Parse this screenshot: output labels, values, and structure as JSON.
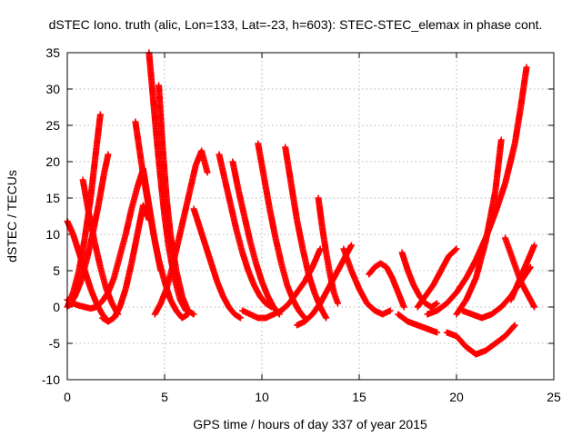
{
  "chart_data": {
    "type": "scatter",
    "title": "dSTEC Iono. truth (alic, Lon=133, Lat=-23, h=603): STEC-STEC_elemax in phase cont.",
    "xlabel": "GPS time / hours of day 337 of year 2015",
    "ylabel": "dSTEC  / TECUs",
    "xlim": [
      0,
      25
    ],
    "ylim": [
      -10,
      35
    ],
    "xticks": [
      "0",
      "5",
      "10",
      "15",
      "20",
      "25"
    ],
    "yticks": [
      "-10",
      "-5",
      "0",
      "5",
      "10",
      "15",
      "20",
      "25",
      "30",
      "35"
    ],
    "grid": true,
    "marker": "+",
    "color": "#ff0000",
    "series": [
      {
        "x": [
          0.0,
          0.3,
          0.6,
          0.9,
          1.2,
          1.5,
          1.8,
          2.1,
          2.4,
          2.7,
          3.0,
          3.3,
          3.6,
          3.9,
          4.2,
          4.5,
          4.8
        ],
        "values": [
          1.0,
          0.5,
          0.2,
          0.0,
          -0.2,
          0.0,
          0.8,
          2.0,
          4.0,
          7.0,
          10.0,
          13.5,
          16.5,
          19.0,
          14.0,
          9.0,
          5.0
        ]
      },
      {
        "x": [
          0.0,
          0.3,
          0.6,
          0.9,
          1.2,
          1.5,
          1.8,
          2.1
        ],
        "values": [
          11.8,
          10.0,
          7.5,
          5.0,
          2.5,
          0.5,
          -1.0,
          -2.0
        ]
      },
      {
        "x": [
          0.0,
          0.3,
          0.6,
          0.9,
          1.2,
          1.5,
          1.7
        ],
        "values": [
          0.0,
          2.0,
          5.0,
          9.5,
          15.0,
          22.0,
          26.5
        ]
      },
      {
        "x": [
          0.1,
          0.4,
          0.7,
          1.0,
          1.3,
          1.6,
          1.9,
          2.1
        ],
        "values": [
          0.2,
          1.5,
          3.5,
          6.5,
          10.0,
          14.0,
          18.5,
          21.0
        ]
      },
      {
        "x": [
          0.8,
          1.1,
          1.4,
          1.7,
          2.0,
          2.3,
          2.6
        ],
        "values": [
          17.5,
          13.0,
          9.0,
          5.5,
          2.5,
          0.5,
          -1.0
        ]
      },
      {
        "x": [
          1.8,
          2.1,
          2.4,
          2.7,
          3.0,
          3.3,
          3.6,
          3.9,
          4.2
        ],
        "values": [
          -1.5,
          -2.0,
          -1.5,
          0.0,
          2.5,
          6.0,
          10.0,
          14.0,
          12.0
        ]
      },
      {
        "x": [
          3.5,
          3.8,
          4.1,
          4.4,
          4.7,
          5.0,
          5.3,
          5.6,
          5.9,
          6.2
        ],
        "values": [
          25.5,
          20.0,
          15.0,
          10.5,
          6.5,
          3.5,
          1.0,
          -0.5,
          -1.5,
          -1.0
        ]
      },
      {
        "x": [
          4.2,
          4.4,
          4.6,
          4.8,
          5.0,
          5.2,
          5.5,
          5.8,
          6.1
        ],
        "values": [
          35.0,
          29.0,
          23.0,
          17.5,
          12.5,
          8.5,
          4.0,
          1.0,
          -0.5
        ]
      },
      {
        "x": [
          4.7,
          4.9,
          5.1,
          5.3,
          5.6,
          5.9,
          6.2,
          6.5
        ],
        "values": [
          30.5,
          22.0,
          15.0,
          10.0,
          5.0,
          1.5,
          -0.5,
          -1.0
        ]
      },
      {
        "x": [
          4.5,
          4.8,
          5.1,
          5.4,
          5.7,
          6.0,
          6.3,
          6.6,
          6.9,
          7.2
        ],
        "values": [
          -1.0,
          0.5,
          2.5,
          5.5,
          9.0,
          12.5,
          16.0,
          19.5,
          21.5,
          18.5
        ]
      },
      {
        "x": [
          6.5,
          6.8,
          7.1,
          7.4,
          7.7,
          8.0,
          8.3,
          8.6,
          8.9
        ],
        "values": [
          13.5,
          11.0,
          8.5,
          6.0,
          3.5,
          1.5,
          0.0,
          -1.0,
          -1.5
        ]
      },
      {
        "x": [
          7.8,
          8.1,
          8.4,
          8.7,
          9.0,
          9.3,
          9.6,
          9.9,
          10.2,
          10.5
        ],
        "values": [
          21.0,
          17.5,
          14.0,
          10.5,
          7.5,
          5.0,
          3.0,
          1.5,
          0.5,
          0.0
        ]
      },
      {
        "x": [
          8.5,
          8.8,
          9.1,
          9.4,
          9.7,
          10.0,
          10.3,
          10.6,
          10.9
        ],
        "values": [
          20.0,
          16.0,
          12.5,
          9.0,
          6.0,
          3.5,
          1.5,
          0.0,
          -1.0
        ]
      },
      {
        "x": [
          9.8,
          10.1,
          10.4,
          10.7,
          11.0,
          11.3,
          11.6,
          11.9,
          12.2
        ],
        "values": [
          22.5,
          18.0,
          13.5,
          9.5,
          6.0,
          3.0,
          1.0,
          -0.5,
          -1.5
        ]
      },
      {
        "x": [
          11.2,
          11.5,
          11.8,
          12.1,
          12.4,
          12.7,
          13.0,
          13.3
        ],
        "values": [
          22.0,
          17.0,
          12.0,
          8.0,
          4.5,
          2.0,
          0.0,
          -1.5
        ]
      },
      {
        "x": [
          9.0,
          9.4,
          9.8,
          10.2,
          10.6,
          11.0,
          11.4,
          11.8,
          12.2,
          12.6,
          13.0
        ],
        "values": [
          -0.5,
          -1.0,
          -1.5,
          -1.5,
          -1.0,
          -0.5,
          0.5,
          2.0,
          3.5,
          5.5,
          8.0
        ]
      },
      {
        "x": [
          12.9,
          13.1,
          13.3,
          13.5,
          13.7,
          13.9
        ],
        "values": [
          15.0,
          11.0,
          7.5,
          4.5,
          2.0,
          0.5
        ]
      },
      {
        "x": [
          11.8,
          12.2,
          12.6,
          13.0,
          13.4,
          13.8,
          14.2,
          14.6
        ],
        "values": [
          -2.5,
          -2.0,
          -1.0,
          0.5,
          2.5,
          4.5,
          6.5,
          8.5
        ]
      },
      {
        "x": [
          14.2,
          14.6,
          15.0,
          15.4,
          15.8,
          16.2,
          16.6
        ],
        "values": [
          8.0,
          5.0,
          2.5,
          0.5,
          -0.5,
          -1.0,
          -0.5
        ]
      },
      {
        "x": [
          15.5,
          15.8,
          16.1,
          16.4,
          16.7,
          17.0,
          17.3
        ],
        "values": [
          4.5,
          5.5,
          6.0,
          5.5,
          4.0,
          2.0,
          0.0
        ]
      },
      {
        "x": [
          17.2,
          17.5,
          17.8,
          18.1,
          18.4,
          18.7,
          19.0
        ],
        "values": [
          7.5,
          5.0,
          3.0,
          1.5,
          0.5,
          0.0,
          0.5
        ]
      },
      {
        "x": [
          17.0,
          17.5,
          18.0,
          18.5,
          19.0
        ],
        "values": [
          -1.0,
          -2.0,
          -2.5,
          -3.0,
          -3.5
        ]
      },
      {
        "x": [
          18.0,
          18.4,
          18.8,
          19.2,
          19.6,
          20.0
        ],
        "values": [
          0.0,
          1.5,
          3.0,
          5.0,
          7.0,
          8.0
        ]
      },
      {
        "x": [
          19.5,
          20.0,
          20.5,
          21.0,
          21.5,
          22.0,
          22.5,
          23.0
        ],
        "values": [
          -3.5,
          -4.0,
          -5.5,
          -6.5,
          -6.0,
          -5.0,
          -4.0,
          -2.5
        ]
      },
      {
        "x": [
          18.5,
          19.0,
          19.5,
          20.0,
          20.5,
          21.0,
          21.5,
          22.0,
          22.5,
          23.0,
          23.3,
          23.6
        ],
        "values": [
          -1.0,
          -0.5,
          0.5,
          2.0,
          4.0,
          6.5,
          9.5,
          13.0,
          17.0,
          22.5,
          27.5,
          33.0
        ]
      },
      {
        "x": [
          20.0,
          20.5,
          21.0,
          21.5,
          22.0,
          22.3
        ],
        "values": [
          -1.0,
          1.0,
          4.0,
          9.0,
          16.0,
          23.0
        ]
      },
      {
        "x": [
          20.3,
          20.8,
          21.3,
          21.8,
          22.3,
          22.8,
          23.3,
          23.8
        ],
        "values": [
          -0.5,
          -1.0,
          -1.5,
          -1.0,
          0.0,
          1.5,
          3.5,
          5.5
        ]
      },
      {
        "x": [
          22.5,
          22.9,
          23.3,
          23.7,
          24.0
        ],
        "values": [
          9.5,
          6.5,
          3.5,
          1.5,
          0.0
        ]
      },
      {
        "x": [
          22.8,
          23.2,
          23.6,
          24.0
        ],
        "values": [
          1.0,
          3.5,
          6.0,
          8.5
        ]
      }
    ]
  }
}
